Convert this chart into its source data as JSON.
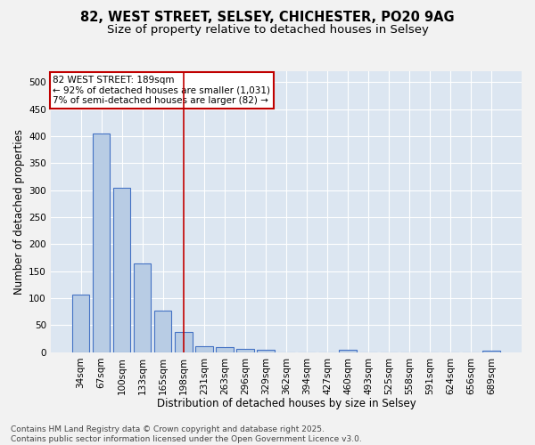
{
  "title_line1": "82, WEST STREET, SELSEY, CHICHESTER, PO20 9AG",
  "title_line2": "Size of property relative to detached houses in Selsey",
  "xlabel": "Distribution of detached houses by size in Selsey",
  "ylabel": "Number of detached properties",
  "categories": [
    "34sqm",
    "67sqm",
    "100sqm",
    "133sqm",
    "165sqm",
    "198sqm",
    "231sqm",
    "263sqm",
    "296sqm",
    "329sqm",
    "362sqm",
    "394sqm",
    "427sqm",
    "460sqm",
    "493sqm",
    "525sqm",
    "558sqm",
    "591sqm",
    "624sqm",
    "656sqm",
    "689sqm"
  ],
  "values": [
    107,
    405,
    305,
    165,
    77,
    37,
    12,
    10,
    7,
    5,
    0,
    0,
    0,
    5,
    0,
    0,
    0,
    0,
    0,
    0,
    3
  ],
  "bar_color": "#b8cce4",
  "bar_edge_color": "#4472c4",
  "bar_linewidth": 0.8,
  "vline_x_index": 5,
  "vline_color": "#c00000",
  "vline_linewidth": 1.2,
  "annotation_text": "82 WEST STREET: 189sqm\n← 92% of detached houses are smaller (1,031)\n7% of semi-detached houses are larger (82) →",
  "annotation_box_color": "#c00000",
  "annotation_text_color": "#000000",
  "ylim": [
    0,
    520
  ],
  "yticks": [
    0,
    50,
    100,
    150,
    200,
    250,
    300,
    350,
    400,
    450,
    500
  ],
  "grid_color": "#ffffff",
  "background_color": "#dce6f1",
  "fig_background_color": "#f2f2f2",
  "footer_line1": "Contains HM Land Registry data © Crown copyright and database right 2025.",
  "footer_line2": "Contains public sector information licensed under the Open Government Licence v3.0.",
  "title_fontsize": 10.5,
  "subtitle_fontsize": 9.5,
  "axis_label_fontsize": 8.5,
  "tick_fontsize": 7.5,
  "annotation_fontsize": 7.5,
  "footer_fontsize": 6.5
}
